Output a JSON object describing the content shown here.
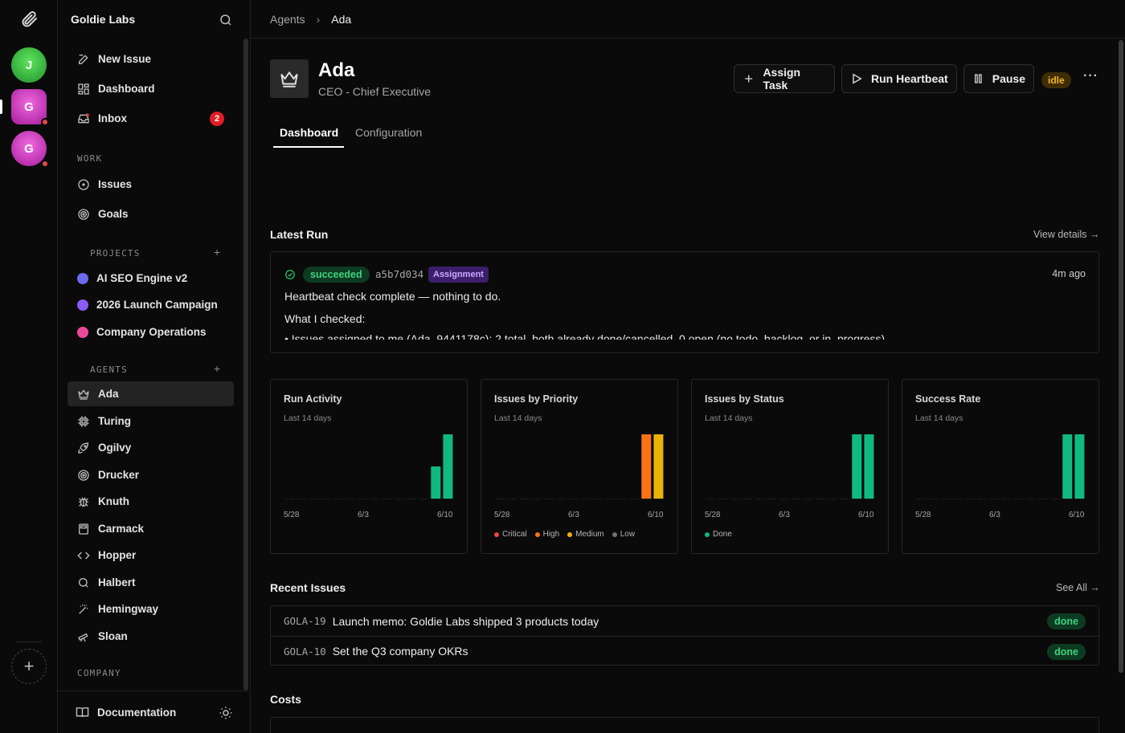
{
  "rail": {
    "workspaces": [
      {
        "initial": "J",
        "color": "#2fb43c"
      },
      {
        "initial": "G",
        "color": "#c92bbd"
      },
      {
        "initial": "G",
        "color": "#c92bbd"
      }
    ],
    "add_label": "+"
  },
  "sidebar": {
    "company": "Goldie Labs",
    "nav": [
      {
        "label": "New Issue",
        "icon": "edit-icon"
      },
      {
        "label": "Dashboard",
        "icon": "dashboard-icon"
      },
      {
        "label": "Inbox",
        "icon": "inbox-icon",
        "badge": "2"
      }
    ],
    "work_title": "WORK",
    "work": [
      {
        "label": "Issues",
        "icon": "circle-dot-icon"
      },
      {
        "label": "Goals",
        "icon": "target-icon"
      }
    ],
    "projects_title": "PROJECTS",
    "projects": [
      {
        "label": "AI SEO Engine v2",
        "color": "#6b6bf0"
      },
      {
        "label": "2026 Launch Campaign",
        "color": "#8b5cf6"
      },
      {
        "label": "Company Operations",
        "color": "#ec4899"
      }
    ],
    "agents_title": "AGENTS",
    "agents": [
      {
        "label": "Ada",
        "icon": "crown-icon"
      },
      {
        "label": "Turing",
        "icon": "cpu-icon"
      },
      {
        "label": "Ogilvy",
        "icon": "rocket-icon"
      },
      {
        "label": "Drucker",
        "icon": "target-icon"
      },
      {
        "label": "Knuth",
        "icon": "bug-icon"
      },
      {
        "label": "Carmack",
        "icon": "calculator-icon"
      },
      {
        "label": "Hopper",
        "icon": "code-icon"
      },
      {
        "label": "Halbert",
        "icon": "search-icon"
      },
      {
        "label": "Hemingway",
        "icon": "wand-icon"
      },
      {
        "label": "Sloan",
        "icon": "telescope-icon"
      }
    ],
    "company_title": "COMPANY",
    "docs_label": "Documentation",
    "plus": "+"
  },
  "breadcrumb": {
    "parent": "Agents",
    "current": "Ada"
  },
  "agent": {
    "name": "Ada",
    "role": "CEO - Chief Executive",
    "status": "idle"
  },
  "actions": {
    "assign": "Assign Task",
    "heartbeat": "Run Heartbeat",
    "pause": "Pause",
    "more": "···"
  },
  "tabs": {
    "dashboard": "Dashboard",
    "configuration": "Configuration"
  },
  "latest_run": {
    "title": "Latest Run",
    "view_details": "View details →",
    "status": "succeeded",
    "hash": "a5b7d034",
    "tag": "Assignment",
    "ago": "4m ago",
    "line1": "Heartbeat check complete — nothing to do.",
    "line2": "What I checked:",
    "line3": "•   Issues assigned to me (Ada, 9441178c): 2 total, both already done/cancelled, 0 open (no todo, backlog, or in_progress)"
  },
  "charts": {
    "subtitle": "Last 14 days",
    "ticks": [
      "5/28",
      "6/3",
      "6/10"
    ],
    "run_activity": {
      "title": "Run Activity"
    },
    "priority": {
      "title": "Issues by Priority",
      "legend": [
        "Critical",
        "High",
        "Medium",
        "Low"
      ]
    },
    "status": {
      "title": "Issues by Status",
      "legend": [
        "Done"
      ]
    },
    "success": {
      "title": "Success Rate"
    }
  },
  "chart_data": [
    {
      "type": "bar",
      "title": "Run Activity",
      "x": [
        "5/28",
        "5/29",
        "5/30",
        "5/31",
        "6/1",
        "6/2",
        "6/3",
        "6/4",
        "6/5",
        "6/6",
        "6/7",
        "6/8",
        "6/9",
        "6/10"
      ],
      "values": [
        0,
        0,
        0,
        0,
        0,
        0,
        0,
        0,
        0,
        0,
        0,
        0,
        1,
        2
      ],
      "color": "#10b981"
    },
    {
      "type": "bar",
      "title": "Issues by Priority",
      "x": [
        "5/28",
        "5/29",
        "5/30",
        "5/31",
        "6/1",
        "6/2",
        "6/3",
        "6/4",
        "6/5",
        "6/6",
        "6/7",
        "6/8",
        "6/9",
        "6/10"
      ],
      "series": [
        {
          "name": "Critical",
          "color": "#ef4444",
          "values": [
            0,
            0,
            0,
            0,
            0,
            0,
            0,
            0,
            0,
            0,
            0,
            0,
            0,
            0
          ]
        },
        {
          "name": "High",
          "color": "#f97316",
          "values": [
            0,
            0,
            0,
            0,
            0,
            0,
            0,
            0,
            0,
            0,
            0,
            0,
            1,
            0
          ]
        },
        {
          "name": "Medium",
          "color": "#eab308",
          "values": [
            0,
            0,
            0,
            0,
            0,
            0,
            0,
            0,
            0,
            0,
            0,
            0,
            0,
            1
          ]
        },
        {
          "name": "Low",
          "color": "#71717a",
          "values": [
            0,
            0,
            0,
            0,
            0,
            0,
            0,
            0,
            0,
            0,
            0,
            0,
            0,
            0
          ]
        }
      ]
    },
    {
      "type": "bar",
      "title": "Issues by Status",
      "x": [
        "5/28",
        "5/29",
        "5/30",
        "5/31",
        "6/1",
        "6/2",
        "6/3",
        "6/4",
        "6/5",
        "6/6",
        "6/7",
        "6/8",
        "6/9",
        "6/10"
      ],
      "series": [
        {
          "name": "Done",
          "color": "#10b981",
          "values": [
            0,
            0,
            0,
            0,
            0,
            0,
            0,
            0,
            0,
            0,
            0,
            0,
            1,
            1
          ]
        }
      ]
    },
    {
      "type": "bar",
      "title": "Success Rate",
      "x": [
        "5/28",
        "5/29",
        "5/30",
        "5/31",
        "6/1",
        "6/2",
        "6/3",
        "6/4",
        "6/5",
        "6/6",
        "6/7",
        "6/8",
        "6/9",
        "6/10"
      ],
      "values": [
        0,
        0,
        0,
        0,
        0,
        0,
        0,
        0,
        0,
        0,
        0,
        0,
        1,
        1
      ],
      "color": "#10b981"
    }
  ],
  "recent_issues": {
    "title": "Recent Issues",
    "see_all": "See All →",
    "rows": [
      {
        "id": "GOLA-19",
        "title": "Launch memo: Goldie Labs shipped 3 products today",
        "status": "done"
      },
      {
        "id": "GOLA-10",
        "title": "Set the Q3 company OKRs",
        "status": "done"
      }
    ]
  },
  "costs": {
    "title": "Costs"
  }
}
